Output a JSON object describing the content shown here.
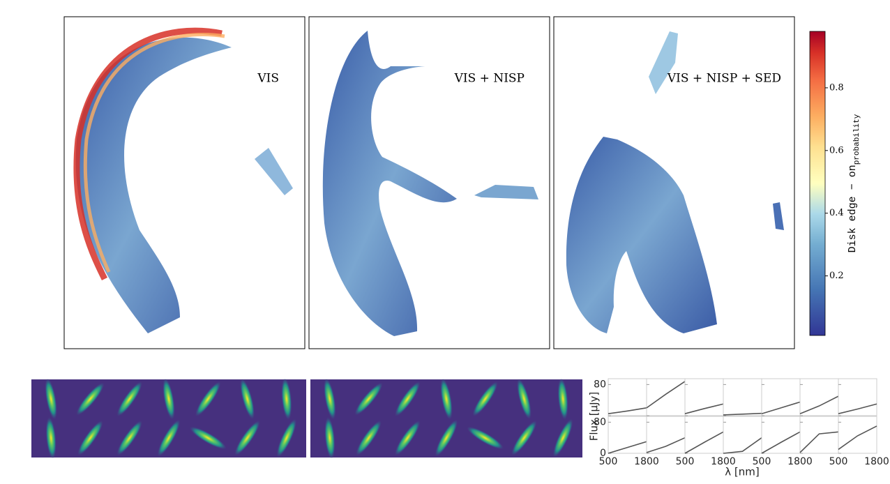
{
  "chart_data": [
    {
      "type": "hexbin",
      "panels": [
        {
          "label": "VIS"
        },
        {
          "label": "VIS + NISP"
        },
        {
          "label": "VIS + NISP + SED"
        }
      ],
      "colorbar": {
        "label": "Disk edge − on",
        "label_sub": "probability",
        "clim": [
          0.01,
          0.98
        ],
        "ticks": [
          0.2,
          0.4,
          0.6,
          0.8
        ]
      }
    },
    {
      "type": "line",
      "ylabel": "Flux [μJy]",
      "xlabel": "λ [nm]",
      "color": "#555555",
      "xlim": [
        500,
        1800
      ],
      "ylim": [
        0,
        95
      ],
      "xticks": [
        500,
        1800
      ],
      "yticks": [
        0,
        80
      ],
      "x": [
        500,
        1150,
        1800
      ],
      "series": [
        {
          "values": [
            5,
            12,
            20
          ]
        },
        {
          "values": [
            20,
            55,
            88
          ]
        },
        {
          "values": [
            5,
            18,
            30
          ]
        },
        {
          "values": [
            2,
            4,
            6
          ]
        },
        {
          "values": [
            5,
            20,
            35
          ]
        },
        {
          "values": [
            5,
            25,
            50
          ]
        },
        {
          "values": [
            5,
            17,
            30
          ]
        },
        {
          "values": [
            0,
            15,
            30
          ]
        },
        {
          "values": [
            2,
            18,
            40
          ]
        },
        {
          "values": [
            0,
            28,
            55
          ]
        },
        {
          "values": [
            0,
            5,
            40
          ]
        },
        {
          "values": [
            0,
            28,
            55
          ]
        },
        {
          "values": [
            2,
            50,
            55
          ]
        },
        {
          "values": [
            10,
            45,
            70
          ]
        }
      ]
    }
  ]
}
